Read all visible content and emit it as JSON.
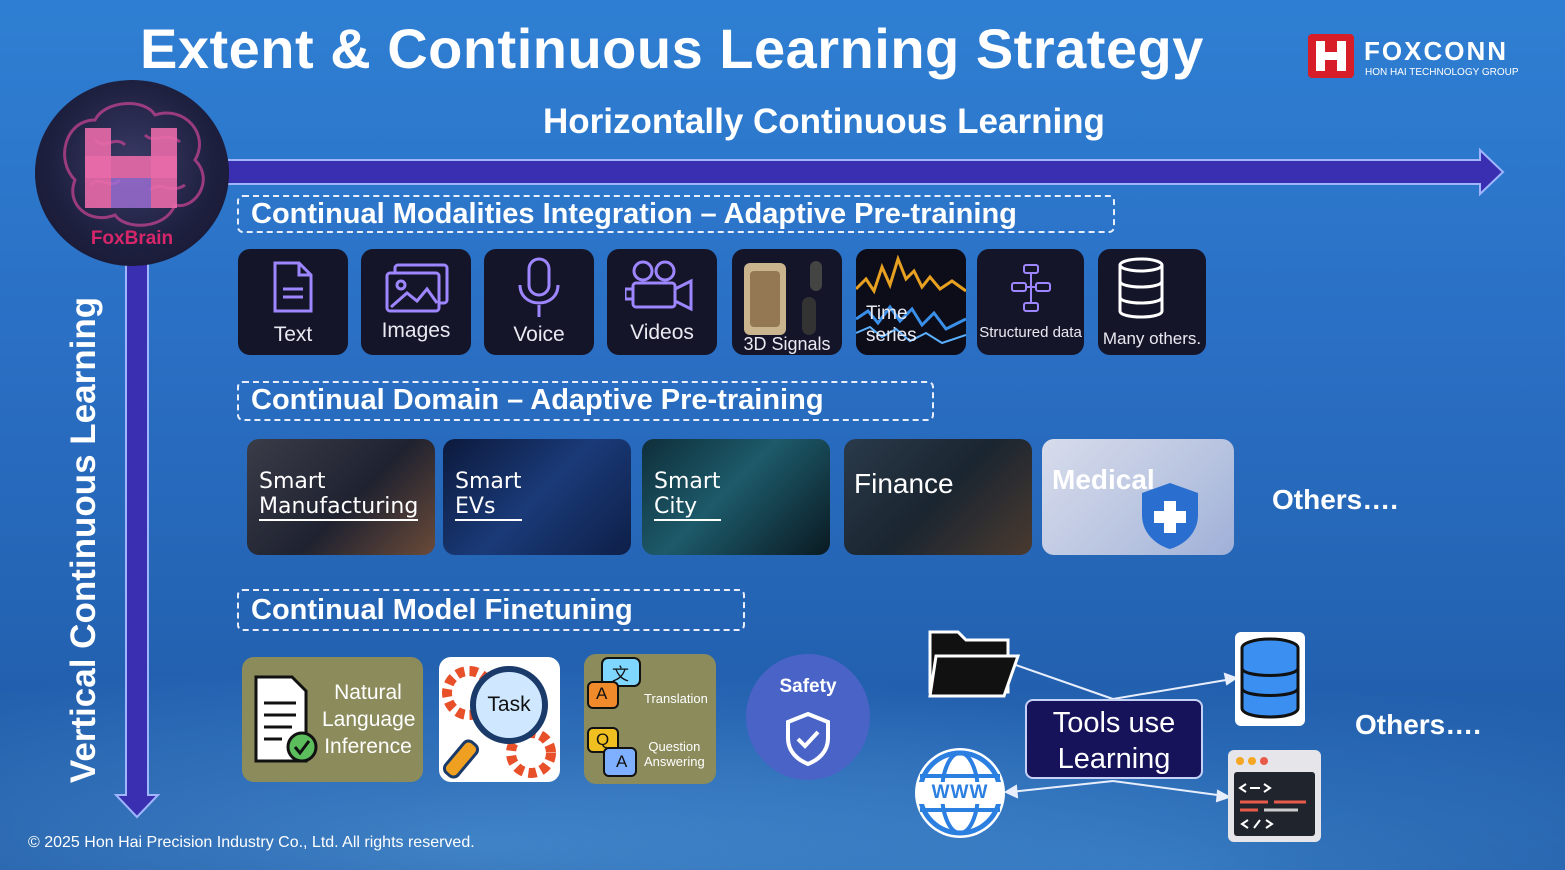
{
  "title": "Extent & Continuous Learning Strategy",
  "logo": {
    "name": "FOXCONN",
    "subtitle": "HON HAI TECHNOLOGY GROUP",
    "brand_color": "#d71e28"
  },
  "brain": {
    "label": "FoxBrain"
  },
  "horizontal_heading": "Horizontally Continuous Learning",
  "vertical_heading": "Vertical Continuous Learning",
  "modalities": {
    "heading": "Continual Modalities Integration – Adaptive Pre-training",
    "items": [
      {
        "label": "Text",
        "icon": "document-icon"
      },
      {
        "label": "Images",
        "icon": "images-icon"
      },
      {
        "label": "Voice",
        "icon": "microphone-icon"
      },
      {
        "label": "Videos",
        "icon": "video-camera-icon"
      },
      {
        "label": "3D Signals",
        "icon": "3d-scan-icon"
      },
      {
        "label": "Time series",
        "icon": "waveform-icon"
      },
      {
        "label": "Structured data",
        "icon": "hierarchy-icon"
      },
      {
        "label": "Many others.",
        "icon": "database-icon"
      }
    ]
  },
  "domains": {
    "heading": "Continual Domain – Adaptive Pre-training",
    "items": [
      {
        "line1": "Smart",
        "line2": "Manufacturing"
      },
      {
        "line1": "Smart",
        "line2": "EVs"
      },
      {
        "line1": "Smart",
        "line2": "City"
      },
      {
        "line1": "Finance",
        "line2": ""
      },
      {
        "line1": "Medical",
        "line2": ""
      }
    ],
    "others": "Others…."
  },
  "finetuning": {
    "heading": "Continual Model Finetuning",
    "nli": {
      "line1": "Natural",
      "line2": "Language",
      "line3": "Inference"
    },
    "task": "Task",
    "translation": "Translation",
    "qa": {
      "line1": "Question",
      "line2": "Answering"
    },
    "qa_letters": {
      "q": "Q",
      "a": "A",
      "trans_a": "A",
      "trans_zh": "文"
    },
    "safety": "Safety",
    "tools": {
      "line1": "Tools use",
      "line2": "Learning"
    },
    "www": "WWW",
    "others": "Others…."
  },
  "copyright": "© 2025  Hon Hai Precision Industry Co., Ltd. All rights reserved."
}
